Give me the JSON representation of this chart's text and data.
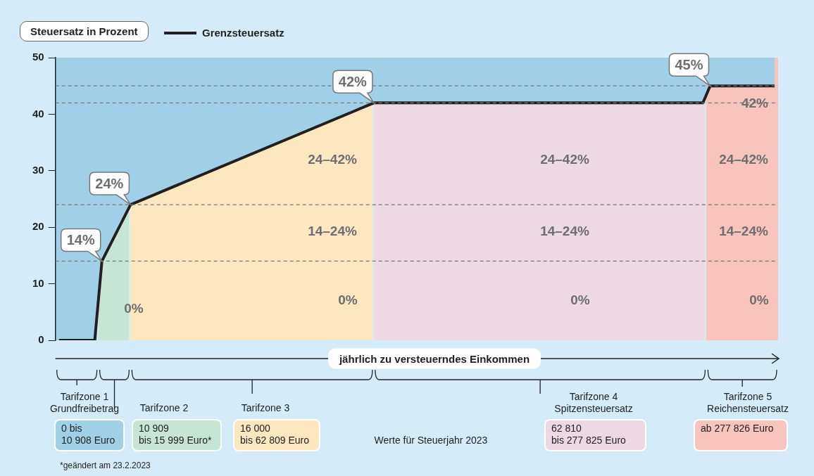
{
  "chart_data": {
    "type": "line",
    "ylabel": "Steuersatz in Prozent",
    "xlabel": "jährlich zu versteuerndes Einkommen",
    "categories": [
      null,
      null,
      null,
      null,
      null,
      null,
      null,
      null,
      null,
      null,
      null,
      null,
      null,
      null,
      null,
      null,
      null,
      null,
      null,
      null,
      null,
      null,
      null,
      null,
      null,
      null,
      null,
      null,
      null,
      null,
      null,
      null,
      null,
      null,
      null,
      null,
      null,
      null,
      null,
      null,
      null,
      null,
      null,
      null,
      null,
      null,
      null,
      null,
      null,
      null,
      null,
      null,
      null,
      null,
      null,
      null,
      null,
      null,
      null,
      null,
      null,
      null,
      null,
      null,
      null,
      null,
      null,
      null,
      null,
      null,
      null,
      null,
      null,
      null,
      null,
      null,
      null,
      null,
      null,
      null,
      null,
      null,
      null,
      null,
      null,
      null,
      null,
      null,
      null,
      null,
      null,
      null,
      null,
      null,
      null,
      null,
      null,
      null,
      null,
      null,
      null
    ],
    "series": [
      {
        "name": "Grenzsteuersatz",
        "color": "#231f20",
        "values": [
          0,
          null,
          null,
          null,
          null,
          0,
          14,
          null,
          null,
          null,
          24,
          null,
          null,
          null,
          null,
          null,
          null,
          null,
          null,
          null,
          null,
          null,
          null,
          null,
          null,
          null,
          null,
          null,
          null,
          null,
          null,
          null,
          null,
          null,
          null,
          null,
          null,
          null,
          null,
          null,
          null,
          null,
          null,
          null,
          42,
          null,
          null,
          null,
          null,
          null,
          null,
          null,
          null,
          null,
          null,
          null,
          null,
          null,
          null,
          null,
          null,
          null,
          null,
          null,
          null,
          null,
          null,
          null,
          null,
          null,
          null,
          null,
          null,
          null,
          null,
          null,
          null,
          null,
          null,
          null,
          null,
          null,
          null,
          null,
          null,
          null,
          null,
          null,
          null,
          null,
          42,
          45,
          null,
          null,
          null,
          null,
          null,
          null,
          null,
          null,
          45
        ],
        "value_labels": [
          null,
          null,
          null,
          null,
          null,
          null,
          "14%",
          null,
          null,
          null,
          "24%",
          null,
          null,
          null,
          null,
          null,
          null,
          null,
          null,
          null,
          null,
          null,
          null,
          null,
          null,
          null,
          null,
          null,
          null,
          null,
          null,
          null,
          null,
          null,
          null,
          null,
          null,
          null,
          null,
          null,
          null,
          null,
          null,
          null,
          "42%",
          null,
          null,
          null,
          null,
          null,
          null,
          null,
          null,
          null,
          null,
          null,
          null,
          null,
          null,
          null,
          null,
          null,
          null,
          null,
          null,
          null,
          null,
          null,
          null,
          null,
          null,
          null,
          null,
          null,
          null,
          null,
          null,
          null,
          null,
          null,
          null,
          null,
          null,
          null,
          null,
          null,
          null,
          null,
          null,
          null,
          null,
          "45%",
          null,
          null,
          null,
          null,
          null,
          null,
          null,
          null,
          null
        ]
      }
    ],
    "ylim": [
      0,
      50
    ],
    "yticks": [
      0,
      10,
      20,
      30,
      40,
      50
    ],
    "tick_labels": "y",
    "grid": false,
    "legend": "top left",
    "marker": "none",
    "line_style": "solid",
    "ref_lines": [
      {
        "axis": "y",
        "value": 14,
        "color": "#7a7a7a",
        "line_style": "dashed"
      },
      {
        "axis": "y",
        "value": 24,
        "color": "#7a7a7a",
        "line_style": "dashed"
      },
      {
        "axis": "y",
        "value": 42,
        "color": "#7a7a7a",
        "line_style": "dashed"
      },
      {
        "axis": "y",
        "value": 45,
        "color": "#7a7a7a",
        "line_style": "dashed"
      }
    ],
    "annotations": [
      "0%",
      "24–42%",
      "14–24%",
      "0%",
      "24–42%",
      "14–24%",
      "0%",
      "42%",
      "24–42%",
      "14–24%",
      "0%",
      "Tarifzone 1\nGrundfreibetrag",
      "Tarifzone 2",
      "Tarifzone 3",
      "Tarifzone 4\nSpitzensteuersatz",
      "Tarifzone 5\nReichensteuersatz",
      "0 bis\n10 908 Euro",
      "10 909\nbis 15 999 Euro*",
      "16 000\nbis 62 809 Euro",
      "Werte für Steuerjahr 2023",
      "62 810\nbis 277 825 Euro",
      "ab 277 826 Euro",
      "*geändert am 23.2.2023"
    ]
  }
}
